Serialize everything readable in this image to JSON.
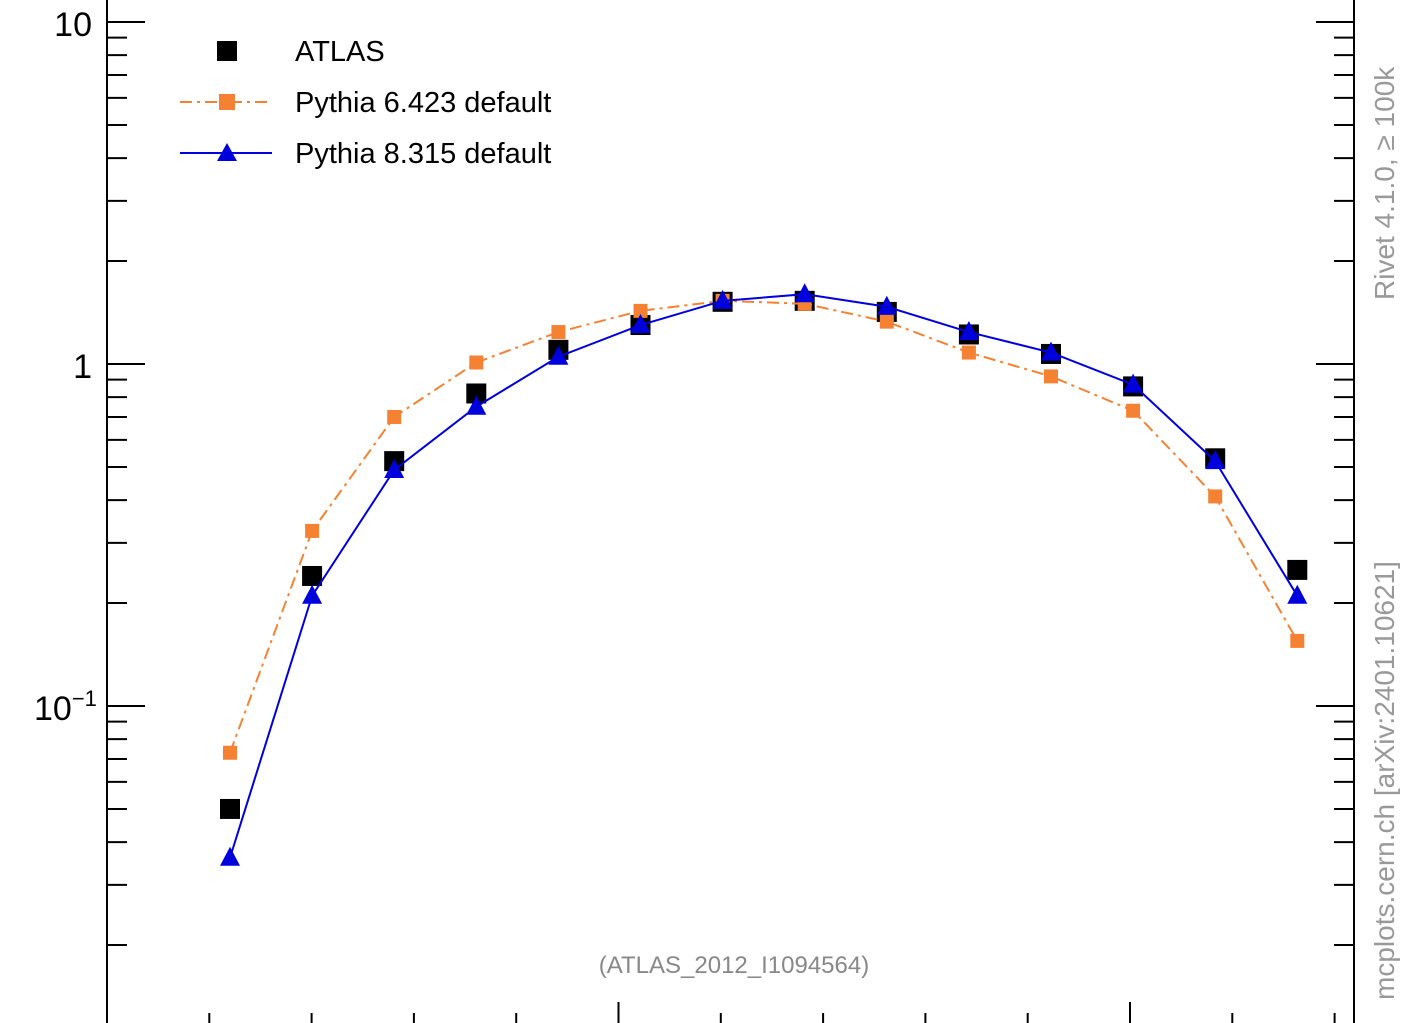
{
  "chart_data": {
    "type": "scatter",
    "yscale": "log",
    "ylim": [
      0.02,
      10
    ],
    "y_tick_labels": [
      {
        "value": 10,
        "label": "10"
      },
      {
        "value": 1,
        "label": "1"
      },
      {
        "value": 0.1,
        "label": "10",
        "exponent": "−1"
      }
    ],
    "x": [
      1,
      2,
      3,
      4,
      5,
      6,
      7,
      8,
      9,
      10,
      11,
      12,
      13,
      14
    ],
    "series": [
      {
        "name": "ATLAS",
        "style": "markers",
        "marker": "square",
        "color": "#000000",
        "values": [
          0.05,
          0.24,
          0.52,
          0.82,
          1.1,
          1.3,
          1.52,
          1.53,
          1.42,
          1.22,
          1.07,
          0.86,
          0.53,
          0.25
        ]
      },
      {
        "name": "Pythia 6.423 default",
        "style": "dashdot",
        "marker": "square",
        "color": "#f58233",
        "values": [
          0.073,
          0.325,
          0.7,
          1.01,
          1.24,
          1.43,
          1.53,
          1.5,
          1.33,
          1.08,
          0.92,
          0.73,
          0.41,
          0.155
        ]
      },
      {
        "name": "Pythia 8.315 default",
        "style": "solid",
        "marker": "triangle",
        "color": "#0000dd",
        "values": [
          0.036,
          0.21,
          0.49,
          0.75,
          1.05,
          1.3,
          1.53,
          1.6,
          1.47,
          1.24,
          1.08,
          0.87,
          0.52,
          0.21
        ]
      }
    ],
    "annotation": "(ATLAS_2012_I1094564)",
    "side_labels": [
      "mcplots.cern.ch [arXiv:2401.10621]",
      "Rivet 4.1.0, ≥ 100k"
    ],
    "legend_position": "top-left",
    "grid": false
  }
}
